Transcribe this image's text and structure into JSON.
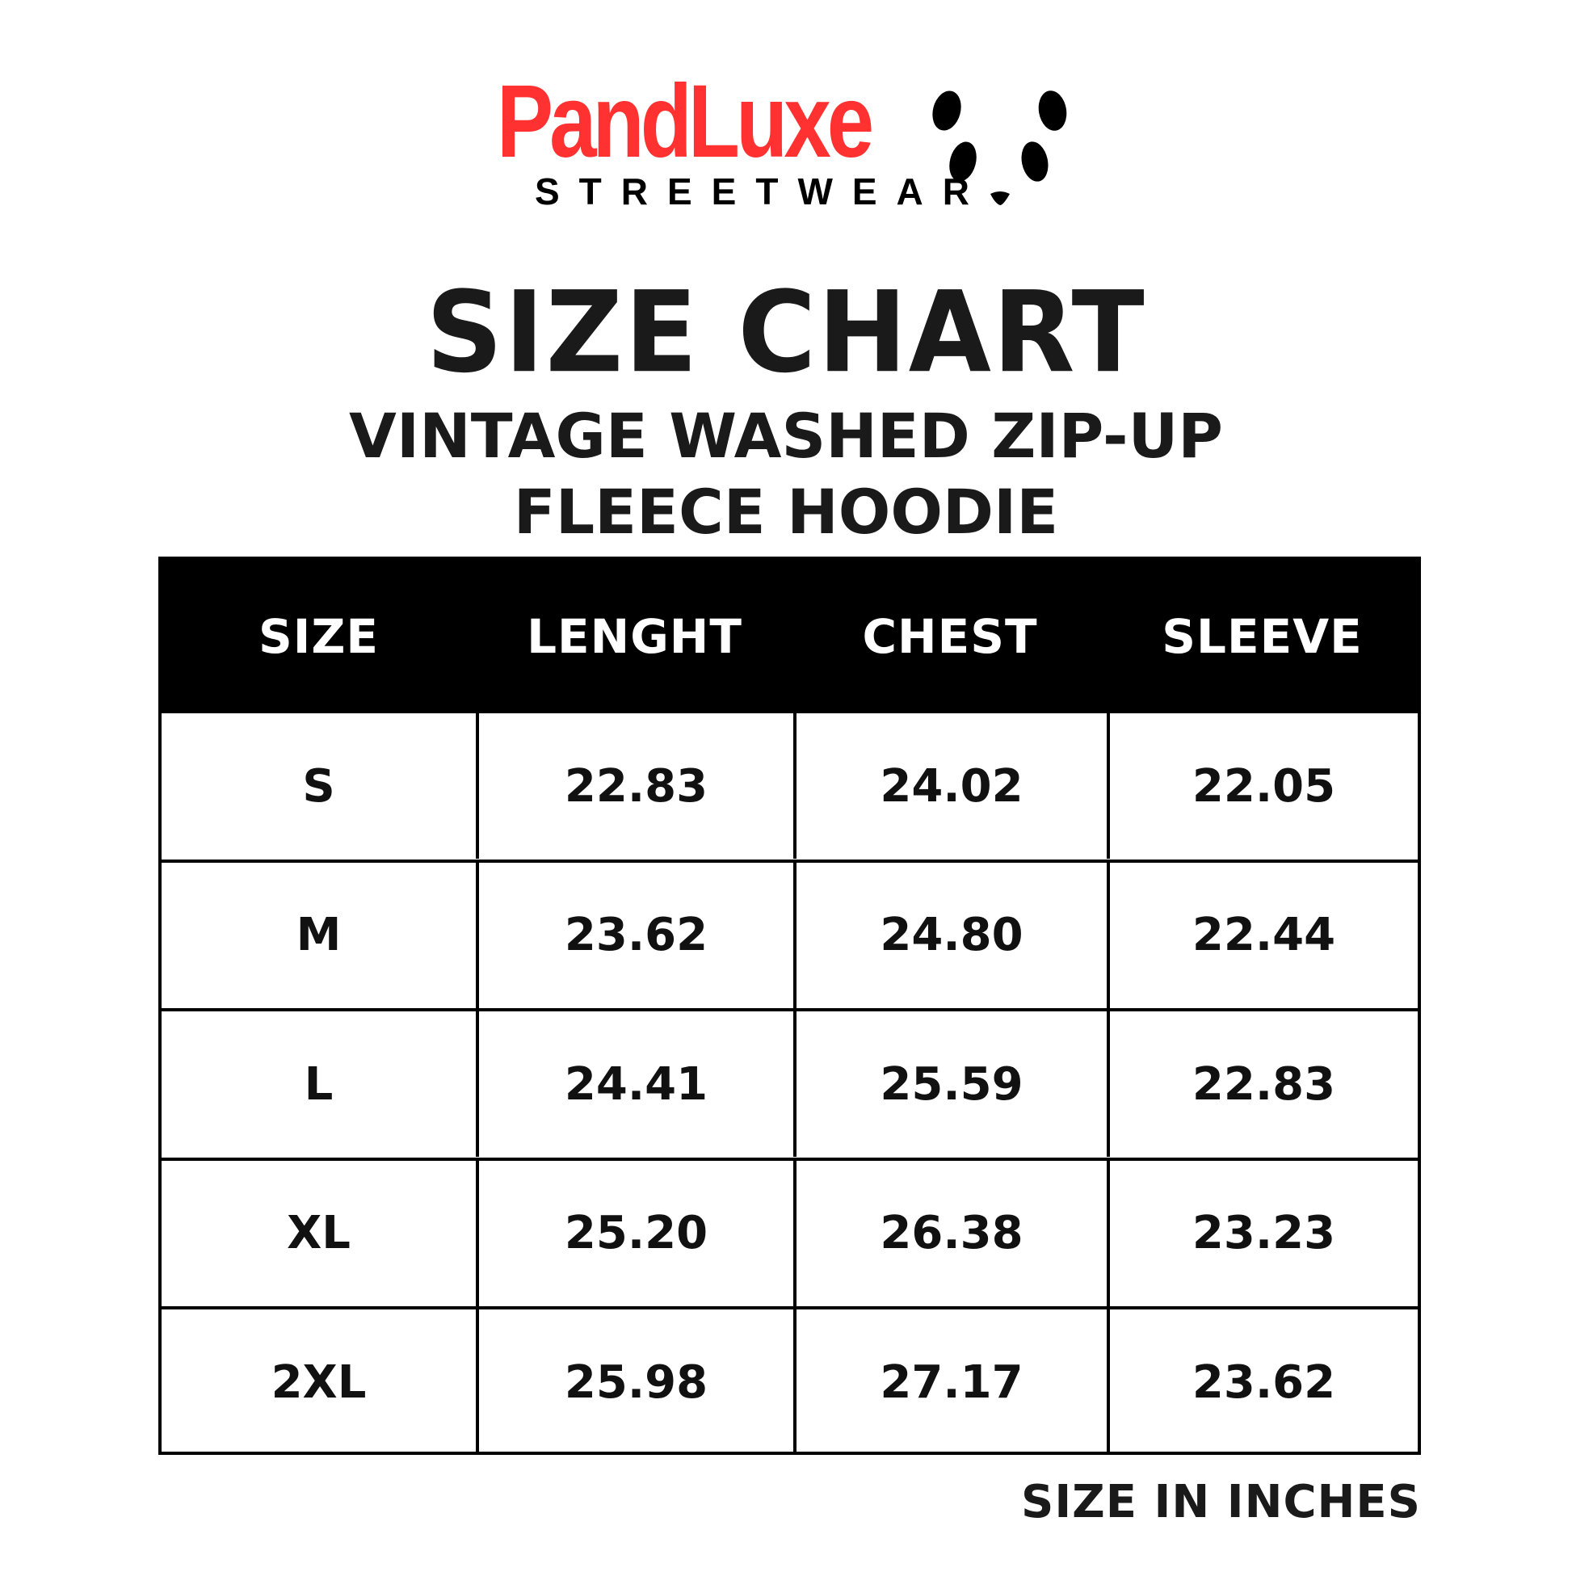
{
  "brand": {
    "name": "PandLuxe",
    "tagline": "STREETWEAR",
    "color": "#ff3131"
  },
  "title": {
    "main": "SIZE CHART",
    "line1": "VINTAGE WASHED ZIP-UP",
    "line2": "FLEECE HOODIE"
  },
  "table": {
    "headers": [
      "SIZE",
      "LENGHT",
      "CHEST",
      "SLEEVE"
    ],
    "rows": [
      [
        "S",
        "22.83",
        "24.02",
        "22.05"
      ],
      [
        "M",
        "23.62",
        "24.80",
        "22.44"
      ],
      [
        "L",
        "24.41",
        "25.59",
        "22.83"
      ],
      [
        "XL",
        "25.20",
        "26.38",
        "23.23"
      ],
      [
        "2XL",
        "25.98",
        "27.17",
        "23.62"
      ]
    ]
  },
  "footer": {
    "note": "SIZE IN INCHES"
  },
  "icons": {
    "logo_mark": "panda-face-icon"
  }
}
